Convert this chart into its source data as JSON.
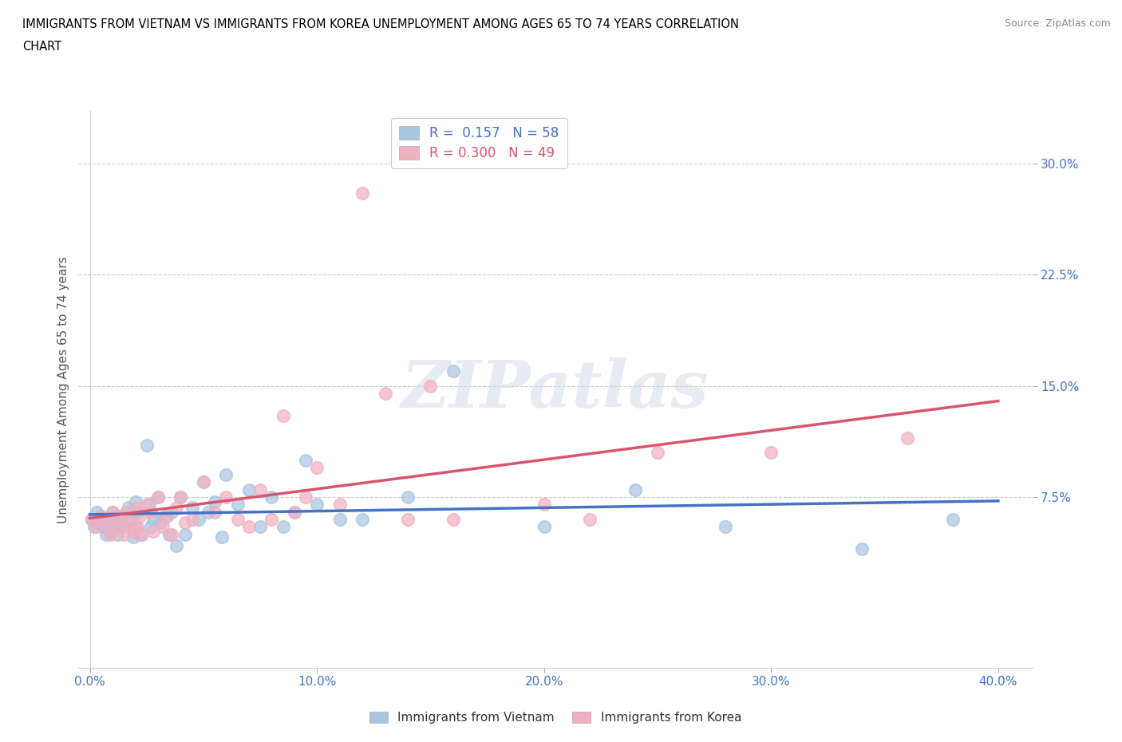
{
  "title_line1": "IMMIGRANTS FROM VIETNAM VS IMMIGRANTS FROM KOREA UNEMPLOYMENT AMONG AGES 65 TO 74 YEARS CORRELATION",
  "title_line2": "CHART",
  "source": "Source: ZipAtlas.com",
  "ylabel": "Unemployment Among Ages 65 to 74 years",
  "xlim": [
    -0.005,
    0.415
  ],
  "ylim": [
    -0.04,
    0.335
  ],
  "xticks": [
    0.0,
    0.1,
    0.2,
    0.3,
    0.4
  ],
  "xtick_labels": [
    "0.0%",
    "10.0%",
    "20.0%",
    "30.0%",
    "40.0%"
  ],
  "ytick_vals": [
    0.075,
    0.15,
    0.225,
    0.3
  ],
  "ytick_labels": [
    "7.5%",
    "15.0%",
    "22.5%",
    "30.0%"
  ],
  "vietnam_color": "#a8c4e0",
  "korea_color": "#f0b0c0",
  "vietnam_line_color": "#4472c4",
  "korea_line_color": "#d9546e",
  "tick_color": "#4472c4",
  "background_color": "#ffffff",
  "grid_color": "#cccccc",
  "R_vietnam": 0.157,
  "N_vietnam": 58,
  "R_korea": 0.3,
  "N_korea": 49,
  "legend_label_vietnam": "Immigrants from Vietnam",
  "legend_label_korea": "Immigrants from Korea",
  "watermark": "ZIPatlas",
  "vietnam_x": [
    0.001,
    0.002,
    0.003,
    0.004,
    0.005,
    0.006,
    0.007,
    0.008,
    0.009,
    0.01,
    0.011,
    0.012,
    0.013,
    0.014,
    0.015,
    0.017,
    0.018,
    0.019,
    0.02,
    0.02,
    0.021,
    0.022,
    0.025,
    0.026,
    0.027,
    0.028,
    0.03,
    0.031,
    0.033,
    0.035,
    0.036,
    0.038,
    0.04,
    0.042,
    0.045,
    0.048,
    0.05,
    0.052,
    0.055,
    0.058,
    0.06,
    0.065,
    0.07,
    0.075,
    0.08,
    0.085,
    0.09,
    0.095,
    0.1,
    0.11,
    0.12,
    0.14,
    0.16,
    0.2,
    0.24,
    0.28,
    0.34,
    0.38
  ],
  "vietnam_y": [
    0.06,
    0.055,
    0.065,
    0.058,
    0.062,
    0.055,
    0.05,
    0.06,
    0.052,
    0.065,
    0.058,
    0.05,
    0.055,
    0.062,
    0.055,
    0.068,
    0.06,
    0.048,
    0.072,
    0.055,
    0.065,
    0.05,
    0.11,
    0.07,
    0.055,
    0.06,
    0.075,
    0.058,
    0.062,
    0.05,
    0.065,
    0.042,
    0.075,
    0.05,
    0.068,
    0.06,
    0.085,
    0.065,
    0.072,
    0.048,
    0.09,
    0.07,
    0.08,
    0.055,
    0.075,
    0.055,
    0.065,
    0.1,
    0.07,
    0.06,
    0.06,
    0.075,
    0.16,
    0.055,
    0.08,
    0.055,
    0.04,
    0.06
  ],
  "korea_x": [
    0.001,
    0.003,
    0.005,
    0.007,
    0.009,
    0.01,
    0.012,
    0.013,
    0.015,
    0.016,
    0.018,
    0.019,
    0.02,
    0.021,
    0.022,
    0.023,
    0.025,
    0.027,
    0.028,
    0.03,
    0.032,
    0.034,
    0.036,
    0.038,
    0.04,
    0.042,
    0.045,
    0.05,
    0.055,
    0.06,
    0.065,
    0.07,
    0.075,
    0.08,
    0.085,
    0.09,
    0.095,
    0.1,
    0.11,
    0.12,
    0.13,
    0.14,
    0.15,
    0.16,
    0.2,
    0.22,
    0.25,
    0.3,
    0.36
  ],
  "korea_y": [
    0.06,
    0.055,
    0.062,
    0.058,
    0.05,
    0.065,
    0.055,
    0.06,
    0.05,
    0.065,
    0.058,
    0.052,
    0.068,
    0.055,
    0.062,
    0.05,
    0.07,
    0.065,
    0.052,
    0.075,
    0.055,
    0.062,
    0.05,
    0.068,
    0.075,
    0.058,
    0.06,
    0.085,
    0.065,
    0.075,
    0.06,
    0.055,
    0.08,
    0.06,
    0.13,
    0.065,
    0.075,
    0.095,
    0.07,
    0.28,
    0.145,
    0.06,
    0.15,
    0.06,
    0.07,
    0.06,
    0.105,
    0.105,
    0.115
  ]
}
